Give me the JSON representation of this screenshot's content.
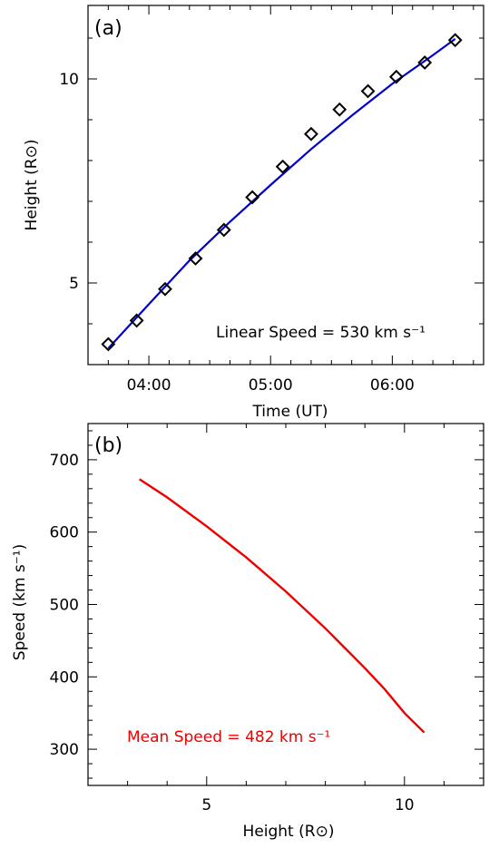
{
  "chart_data": [
    {
      "type": "scatter",
      "panel_label": "(a)",
      "xlabel": "Time (UT)",
      "ylabel": "Height (R⊙)",
      "xlim": [
        "03:30",
        "06:45"
      ],
      "ylim": [
        3.0,
        11.8
      ],
      "x_ticks": [
        "04:00",
        "05:00",
        "06:00"
      ],
      "y_ticks": [
        5,
        10
      ],
      "annotation": "Linear Speed = 530 km s⁻¹",
      "points": {
        "x": [
          "03:40",
          "03:54",
          "04:08",
          "04:23",
          "04:37",
          "04:51",
          "05:06",
          "05:20",
          "05:34",
          "05:48",
          "06:02",
          "06:16",
          "06:31"
        ],
        "y": [
          3.5,
          4.08,
          4.85,
          5.6,
          6.3,
          7.1,
          7.85,
          8.65,
          9.25,
          9.7,
          10.05,
          10.4,
          10.95
        ]
      },
      "fit": {
        "x": [
          "03:40",
          "04:00",
          "04:20",
          "04:40",
          "05:00",
          "05:20",
          "05:40",
          "06:00",
          "06:20",
          "06:31"
        ],
        "y": [
          3.4,
          4.48,
          5.55,
          6.5,
          7.4,
          8.28,
          9.1,
          9.88,
          10.58,
          10.98
        ]
      },
      "colors": {
        "points": "#000000",
        "fit": "#0000cc"
      }
    },
    {
      "type": "line",
      "panel_label": "(b)",
      "xlabel": "Height (R⊙)",
      "ylabel": "Speed (km s⁻¹)",
      "xlim": [
        2.0,
        12.0
      ],
      "ylim": [
        250,
        750
      ],
      "x_ticks": [
        5,
        10
      ],
      "y_ticks": [
        300,
        400,
        500,
        600,
        700
      ],
      "annotation": "Mean Speed = 482 km s⁻¹",
      "series": [
        {
          "x": [
            3.3,
            4.0,
            5.0,
            6.0,
            7.0,
            8.0,
            9.0,
            9.5,
            10.0,
            10.5
          ],
          "y": [
            673,
            648,
            608,
            565,
            518,
            467,
            412,
            383,
            350,
            323
          ]
        }
      ],
      "colors": {
        "line": "#ee0000",
        "annotation": "#ee0000"
      }
    }
  ]
}
